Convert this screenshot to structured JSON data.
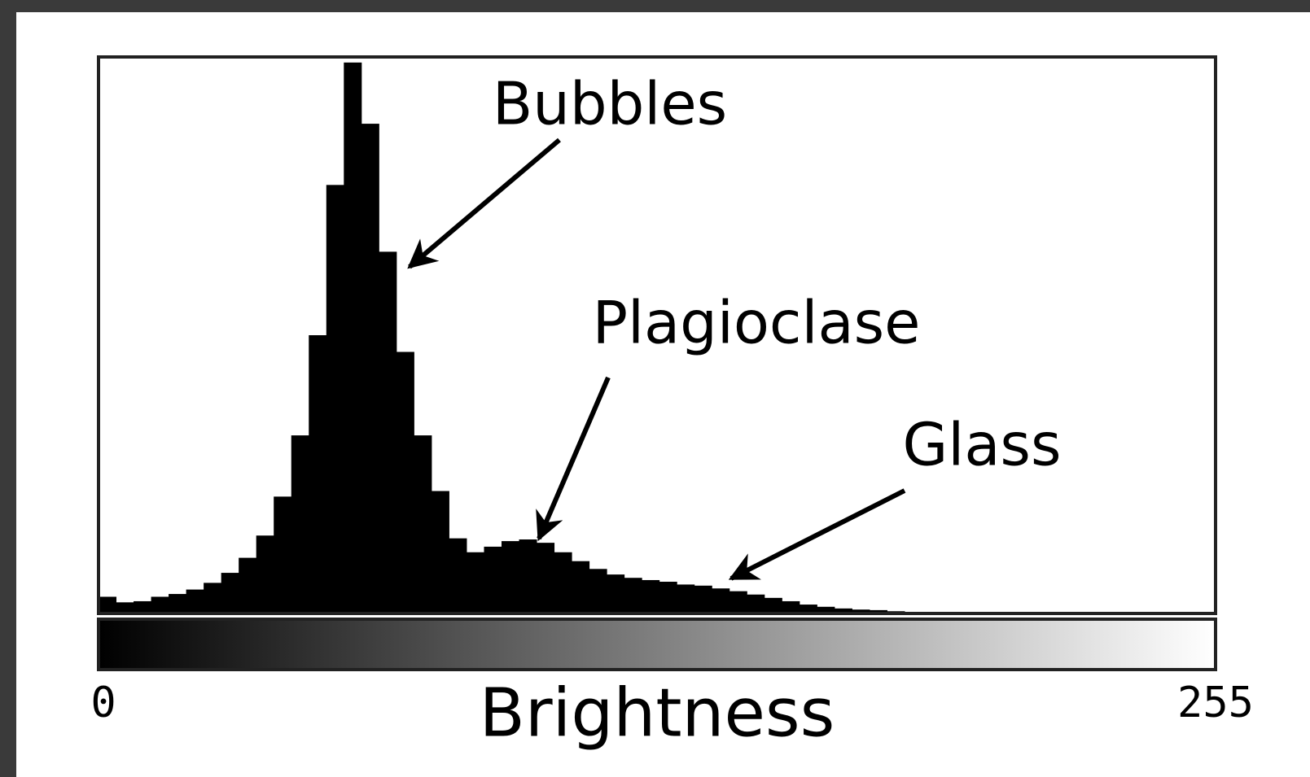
{
  "chart_data": {
    "type": "histogram",
    "xlabel": "Brightness",
    "bins": [
      0,
      4,
      8,
      12,
      16,
      20,
      24,
      28,
      32,
      36,
      40,
      44,
      48,
      52,
      56,
      60,
      64,
      68,
      72,
      76,
      80,
      84,
      88,
      92,
      96,
      100,
      104,
      108,
      112,
      116,
      120,
      124,
      128,
      132,
      136,
      140,
      144,
      148,
      152,
      156,
      160,
      164,
      168,
      172,
      176,
      180,
      184,
      188,
      192,
      196,
      200,
      204,
      208,
      212,
      216,
      220,
      224,
      228,
      232,
      236,
      240,
      244,
      248,
      252,
      255
    ],
    "values": [
      3,
      2,
      2.2,
      3,
      3.5,
      4.3,
      5.5,
      7.3,
      10,
      14,
      21,
      32,
      50,
      77,
      99,
      88,
      65,
      47,
      32,
      22,
      13.5,
      11,
      12,
      13,
      13.3,
      12.7,
      11,
      9.4,
      8,
      7,
      6.4,
      6,
      5.7,
      5.2,
      5,
      4.5,
      4,
      3.4,
      2.8,
      2.2,
      1.6,
      1.2,
      0.9,
      0.7,
      0.6,
      0.4,
      0,
      0,
      0,
      0,
      0,
      0,
      0,
      0,
      0,
      0,
      0,
      0,
      0,
      0,
      0,
      0,
      0,
      0
    ],
    "color": "#000000",
    "xlim": [
      0,
      255
    ],
    "xticks": [
      0,
      255
    ],
    "ylim": [
      0,
      100
    ],
    "annotations": [
      {
        "text": "Bubbles"
      },
      {
        "text": "Plagioclase"
      },
      {
        "text": "Glass"
      }
    ]
  }
}
